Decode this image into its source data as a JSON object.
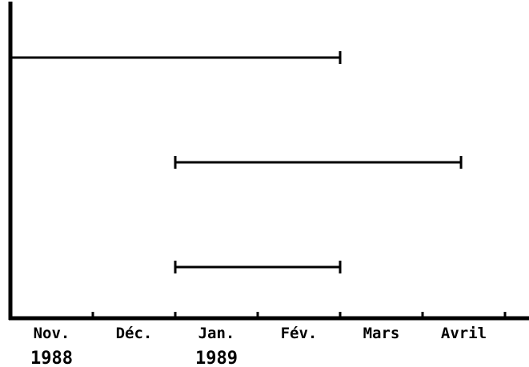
{
  "chart_data": {
    "type": "gantt",
    "x_ticks": [
      "Nov.",
      "Déc.",
      "Jan.",
      "Fév.",
      "Mars",
      "Avril"
    ],
    "year_labels": [
      {
        "label": "1988",
        "at_month": "Nov. 1988"
      },
      {
        "label": "1989",
        "at_month": "Jan. 1989"
      }
    ],
    "x_unit": "months",
    "xlim": [
      "1988-11-01",
      "1989-05-31"
    ],
    "bars": [
      {
        "start": "1988-11-01",
        "end": "1989-03-01"
      },
      {
        "start": "1989-01-01",
        "end": "1989-04-15"
      },
      {
        "start": "1989-01-01",
        "end": "1989-03-01"
      }
    ],
    "grid": false,
    "legend": "none"
  }
}
